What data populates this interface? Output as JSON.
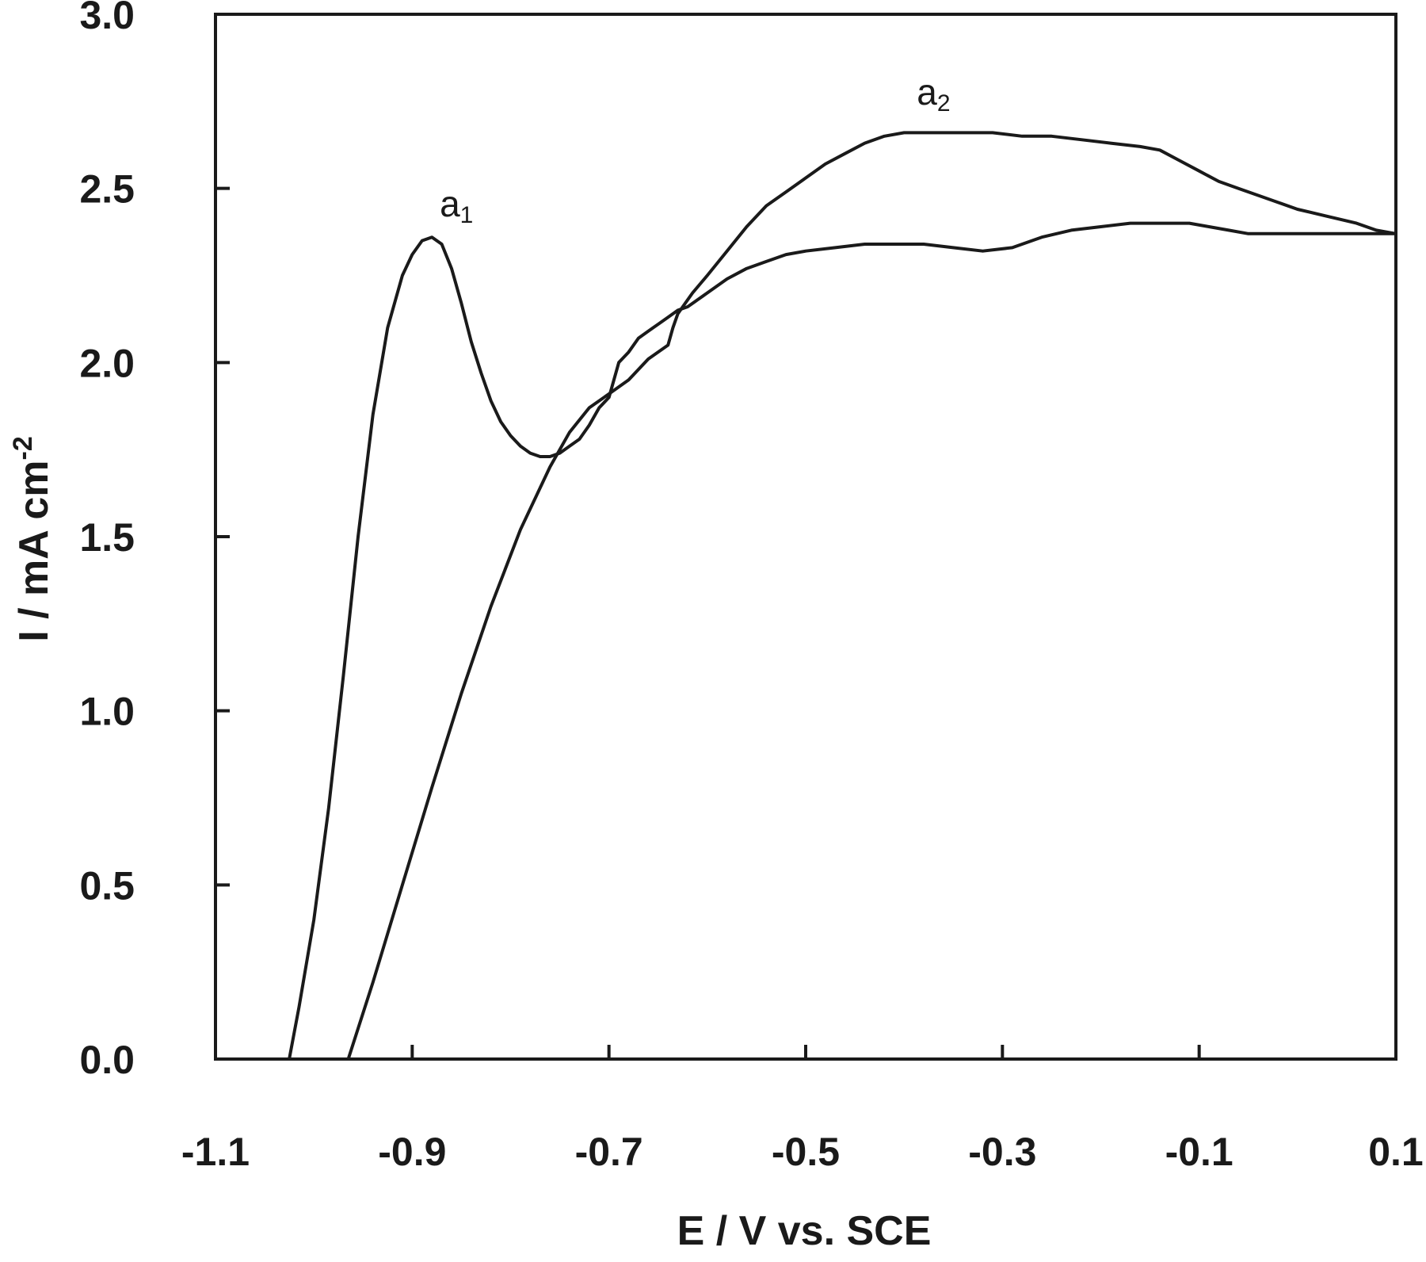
{
  "chart_data": {
    "type": "line",
    "title": "",
    "xlabel": "E / V vs. SCE",
    "ylabel": "I / mA cm",
    "ylabel_superscript": "-2",
    "xlim": [
      -1.1,
      0.1
    ],
    "ylim": [
      0.0,
      3.0
    ],
    "x_ticks": [
      -1.1,
      -0.9,
      -0.7,
      -0.5,
      -0.3,
      -0.1,
      0.1
    ],
    "x_tick_labels": [
      "-1.1",
      "-0.9",
      "-0.7",
      "-0.5",
      "-0.3",
      "-0.1",
      "0.1"
    ],
    "y_ticks": [
      0.0,
      0.5,
      1.0,
      1.5,
      2.0,
      2.5,
      3.0
    ],
    "y_tick_labels": [
      "0.0",
      "0.5",
      "1.0",
      "1.5",
      "2.0",
      "2.5",
      "3.0"
    ],
    "grid": false,
    "line_color": "#1a1a1a",
    "annotations": [
      {
        "text": "a",
        "subscript": "1",
        "x": -0.855,
        "y": 2.42
      },
      {
        "text": "a",
        "subscript": "2",
        "x": -0.37,
        "y": 2.74
      }
    ],
    "series": [
      {
        "x": [
          -1.025,
          -1.015,
          -1.0,
          -0.985,
          -0.97,
          -0.955,
          -0.94,
          -0.925,
          -0.91,
          -0.9,
          -0.89,
          -0.88,
          -0.87,
          -0.86,
          -0.85,
          -0.84,
          -0.83,
          -0.82,
          -0.81,
          -0.8,
          -0.79,
          -0.78,
          -0.77,
          -0.76,
          -0.75,
          -0.74,
          -0.73,
          -0.72,
          -0.71,
          -0.7,
          -0.69,
          -0.68,
          -0.67,
          -0.66,
          -0.655,
          -0.65,
          -0.645,
          -0.64,
          -0.63,
          -0.62,
          -0.61,
          -0.6,
          -0.58,
          -0.56,
          -0.54,
          -0.52,
          -0.5,
          -0.47,
          -0.44,
          -0.41,
          -0.38,
          -0.35,
          -0.32,
          -0.29,
          -0.26,
          -0.23,
          -0.2,
          -0.17,
          -0.15,
          -0.13,
          -0.11,
          -0.09,
          -0.07,
          -0.05,
          -0.03,
          0.0,
          0.03,
          0.06,
          0.1
        ],
        "y": [
          0.0,
          0.15,
          0.4,
          0.72,
          1.1,
          1.5,
          1.85,
          2.1,
          2.25,
          2.31,
          2.35,
          2.36,
          2.34,
          2.27,
          2.17,
          2.06,
          1.97,
          1.89,
          1.83,
          1.79,
          1.76,
          1.74,
          1.73,
          1.73,
          1.74,
          1.76,
          1.78,
          1.82,
          1.87,
          1.9,
          2.0,
          2.03,
          2.07,
          2.09,
          2.1,
          2.11,
          2.12,
          2.13,
          2.15,
          2.16,
          2.18,
          2.2,
          2.24,
          2.27,
          2.29,
          2.31,
          2.32,
          2.33,
          2.34,
          2.34,
          2.34,
          2.33,
          2.32,
          2.33,
          2.36,
          2.38,
          2.39,
          2.4,
          2.4,
          2.4,
          2.4,
          2.39,
          2.38,
          2.37,
          2.37,
          2.37,
          2.37,
          2.37,
          2.37
        ]
      },
      {
        "x": [
          -0.965,
          -0.94,
          -0.91,
          -0.88,
          -0.85,
          -0.82,
          -0.79,
          -0.76,
          -0.74,
          -0.72,
          -0.7,
          -0.68,
          -0.66,
          -0.64,
          -0.635,
          -0.63,
          -0.625,
          -0.615,
          -0.6,
          -0.58,
          -0.56,
          -0.54,
          -0.52,
          -0.5,
          -0.48,
          -0.46,
          -0.44,
          -0.42,
          -0.4,
          -0.37,
          -0.34,
          -0.31,
          -0.28,
          -0.25,
          -0.22,
          -0.19,
          -0.16,
          -0.14,
          -0.12,
          -0.1,
          -0.08,
          -0.06,
          -0.04,
          -0.02,
          0.0,
          0.03,
          0.06,
          0.08,
          0.1
        ],
        "y": [
          0.0,
          0.22,
          0.5,
          0.78,
          1.05,
          1.3,
          1.52,
          1.7,
          1.8,
          1.87,
          1.91,
          1.95,
          2.01,
          2.05,
          2.1,
          2.14,
          2.16,
          2.2,
          2.25,
          2.32,
          2.39,
          2.45,
          2.49,
          2.53,
          2.57,
          2.6,
          2.63,
          2.65,
          2.66,
          2.66,
          2.66,
          2.66,
          2.65,
          2.65,
          2.64,
          2.63,
          2.62,
          2.61,
          2.58,
          2.55,
          2.52,
          2.5,
          2.48,
          2.46,
          2.44,
          2.42,
          2.4,
          2.38,
          2.37
        ]
      }
    ]
  }
}
